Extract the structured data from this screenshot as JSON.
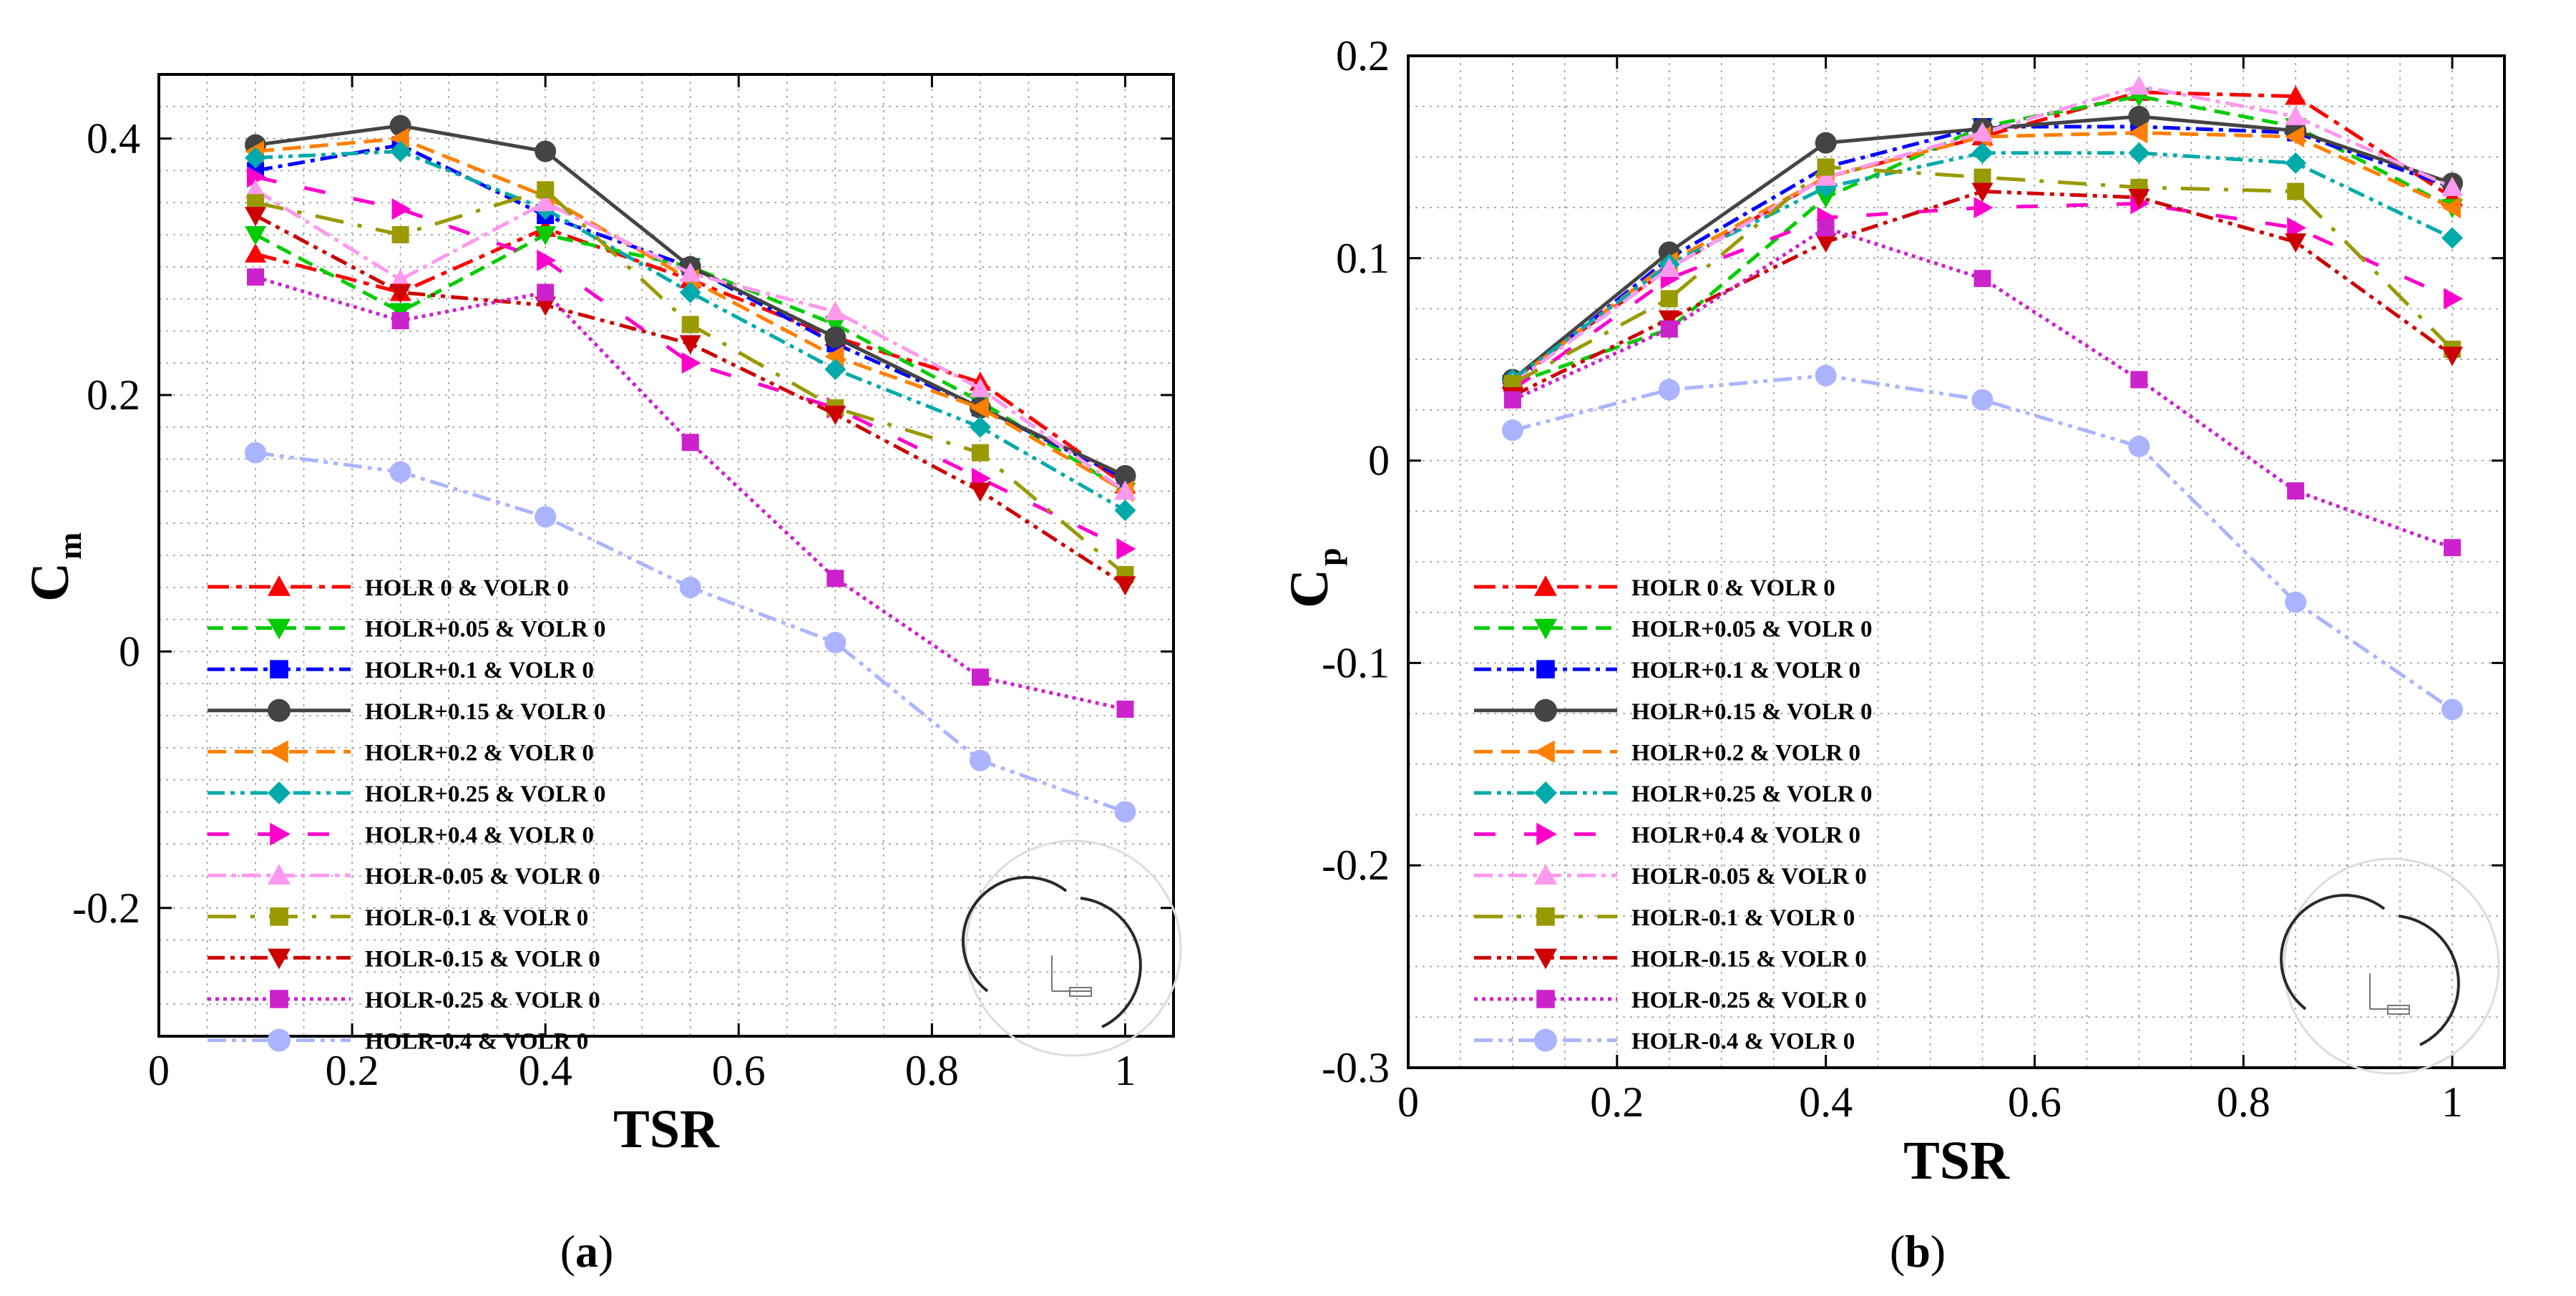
{
  "chart_data": [
    {
      "type": "line",
      "panel": "a",
      "caption_letter": "a",
      "title": "",
      "xlabel": "TSR",
      "ylabel_main": "C",
      "ylabel_sub": "m",
      "xlim": [
        0,
        1.05
      ],
      "ylim": [
        -0.3,
        0.45
      ],
      "xticks": [
        0,
        0.2,
        0.4,
        0.6,
        0.8,
        1
      ],
      "xtick_labels": [
        "0",
        "0.2",
        "0.4",
        "0.6",
        "0.8",
        "1"
      ],
      "yticks": [
        -0.2,
        0,
        0.2,
        0.4
      ],
      "ytick_labels": [
        "-0.2",
        "0",
        "0.2",
        "0.4"
      ],
      "grid": true,
      "legend_position": "lower-left",
      "x": [
        0.1,
        0.25,
        0.4,
        0.55,
        0.7,
        0.85,
        1.0
      ],
      "series": [
        {
          "name": "HOLR 0 & VOLR 0",
          "color": "#ff0000",
          "marker": "triangle-up",
          "dash": "30 10 8 10",
          "values": [
            0.31,
            0.28,
            0.33,
            0.29,
            0.245,
            0.21,
            0.13
          ]
        },
        {
          "name": "HOLR+0.05 & VOLR 0",
          "color": "#00cc00",
          "marker": "triangle-down",
          "dash": "22 12",
          "values": [
            0.325,
            0.265,
            0.325,
            0.3,
            0.255,
            0.195,
            0.125
          ]
        },
        {
          "name": "HOLR+0.1 & VOLR 0",
          "color": "#0000ff",
          "marker": "square",
          "dash": "24 8 6 8",
          "values": [
            0.375,
            0.395,
            0.34,
            0.3,
            0.24,
            0.19,
            0.135
          ]
        },
        {
          "name": "HOLR+0.15 & VOLR 0",
          "color": "#444444",
          "marker": "circle",
          "dash": "",
          "values": [
            0.395,
            0.41,
            0.39,
            0.3,
            0.245,
            0.19,
            0.137
          ]
        },
        {
          "name": "HOLR+0.2 & VOLR 0",
          "color": "#ff8000",
          "marker": "triangle-left",
          "dash": "26 12",
          "values": [
            0.39,
            0.4,
            0.355,
            0.29,
            0.23,
            0.19,
            0.125
          ]
        },
        {
          "name": "HOLR+0.25 & VOLR 0",
          "color": "#00aaaa",
          "marker": "diamond",
          "dash": "24 8 6 8 6 8",
          "values": [
            0.385,
            0.39,
            0.345,
            0.28,
            0.22,
            0.175,
            0.11
          ]
        },
        {
          "name": "HOLR+0.4 & VOLR 0",
          "color": "#ff00cc",
          "marker": "triangle-right",
          "dash": "30 40",
          "values": [
            0.37,
            0.345,
            0.305,
            0.225,
            0.19,
            0.135,
            0.08
          ]
        },
        {
          "name": "HOLR-0.05 & VOLR 0",
          "color": "#ff99ee",
          "marker": "triangle-up",
          "dash": "26 8 6 8",
          "values": [
            0.36,
            0.29,
            0.35,
            0.295,
            0.265,
            0.205,
            0.125
          ]
        },
        {
          "name": "HOLR-0.1 & VOLR 0",
          "color": "#999900",
          "marker": "square",
          "dash": "40 20 6 20",
          "values": [
            0.35,
            0.325,
            0.36,
            0.255,
            0.19,
            0.155,
            0.06
          ]
        },
        {
          "name": "HOLR-0.15 & VOLR 0",
          "color": "#cc0000",
          "marker": "triangle-down",
          "dash": "24 8 6 8 6 8",
          "values": [
            0.34,
            0.28,
            0.27,
            0.24,
            0.185,
            0.125,
            0.052
          ]
        },
        {
          "name": "HOLR-0.25 & VOLR 0",
          "color": "#cc22cc",
          "marker": "square",
          "dash": "5 6",
          "values": [
            0.292,
            0.258,
            0.28,
            0.163,
            0.057,
            -0.02,
            -0.045
          ]
        },
        {
          "name": "HOLR-0.4 & VOLR 0",
          "color": "#aab4ff",
          "marker": "circle",
          "dash": "26 8 6 8 6 8",
          "values": [
            0.155,
            0.14,
            0.105,
            0.05,
            0.007,
            -0.085,
            -0.125
          ]
        }
      ]
    },
    {
      "type": "line",
      "panel": "b",
      "caption_letter": "b",
      "title": "",
      "xlabel": "TSR",
      "ylabel_main": "C",
      "ylabel_sub": "p",
      "xlim": [
        0,
        1.05
      ],
      "ylim": [
        -0.3,
        0.2
      ],
      "xticks": [
        0,
        0.2,
        0.4,
        0.6,
        0.8,
        1
      ],
      "xtick_labels": [
        "0",
        "0.2",
        "0.4",
        "0.6",
        "0.8",
        "1"
      ],
      "yticks": [
        -0.3,
        -0.2,
        -0.1,
        0,
        0.1,
        0.2
      ],
      "ytick_labels": [
        "-0.3",
        "-0.2",
        "-0.1",
        "0",
        "0.1",
        "0.2"
      ],
      "grid": true,
      "legend_position": "lower-left",
      "x": [
        0.1,
        0.25,
        0.4,
        0.55,
        0.7,
        0.85,
        1.0
      ],
      "series": [
        {
          "name": "HOLR 0 & VOLR 0",
          "color": "#ff0000",
          "marker": "triangle-up",
          "dash": "30 10 8 10",
          "values": [
            0.04,
            0.095,
            0.14,
            0.16,
            0.182,
            0.18,
            0.13
          ]
        },
        {
          "name": "HOLR+0.05 & VOLR 0",
          "color": "#00cc00",
          "marker": "triangle-down",
          "dash": "22 12",
          "values": [
            0.038,
            0.065,
            0.13,
            0.165,
            0.18,
            0.165,
            0.125
          ]
        },
        {
          "name": "HOLR+0.1 & VOLR 0",
          "color": "#0000ff",
          "marker": "square",
          "dash": "24 8 6 8",
          "values": [
            0.038,
            0.1,
            0.145,
            0.165,
            0.165,
            0.162,
            0.135
          ]
        },
        {
          "name": "HOLR+0.15 & VOLR 0",
          "color": "#444444",
          "marker": "circle",
          "dash": "",
          "values": [
            0.04,
            0.103,
            0.157,
            0.164,
            0.17,
            0.163,
            0.137
          ]
        },
        {
          "name": "HOLR+0.2 & VOLR 0",
          "color": "#ff8000",
          "marker": "triangle-left",
          "dash": "26 12",
          "values": [
            0.039,
            0.098,
            0.14,
            0.16,
            0.162,
            0.16,
            0.125
          ]
        },
        {
          "name": "HOLR+0.25 & VOLR 0",
          "color": "#00aaaa",
          "marker": "diamond",
          "dash": "24 8 6 8 6 8",
          "values": [
            0.04,
            0.097,
            0.135,
            0.152,
            0.152,
            0.147,
            0.11
          ]
        },
        {
          "name": "HOLR+0.4 & VOLR 0",
          "color": "#ff00cc",
          "marker": "triangle-right",
          "dash": "30 40",
          "values": [
            0.035,
            0.09,
            0.12,
            0.125,
            0.127,
            0.115,
            0.08
          ]
        },
        {
          "name": "HOLR-0.05 & VOLR 0",
          "color": "#ff99ee",
          "marker": "triangle-up",
          "dash": "26 8 6 8",
          "values": [
            0.038,
            0.095,
            0.14,
            0.162,
            0.185,
            0.17,
            0.135
          ]
        },
        {
          "name": "HOLR-0.1 & VOLR 0",
          "color": "#999900",
          "marker": "square",
          "dash": "40 20 6 20",
          "values": [
            0.038,
            0.08,
            0.145,
            0.14,
            0.135,
            0.133,
            0.055
          ]
        },
        {
          "name": "HOLR-0.15 & VOLR 0",
          "color": "#cc0000",
          "marker": "triangle-down",
          "dash": "24 8 6 8 6 8",
          "values": [
            0.032,
            0.07,
            0.108,
            0.133,
            0.13,
            0.108,
            0.052
          ]
        },
        {
          "name": "HOLR-0.25 & VOLR 0",
          "color": "#cc22cc",
          "marker": "square",
          "dash": "5 6",
          "values": [
            0.03,
            0.065,
            0.115,
            0.09,
            0.04,
            -0.015,
            -0.043
          ]
        },
        {
          "name": "HOLR-0.4 & VOLR 0",
          "color": "#aab4ff",
          "marker": "circle",
          "dash": "26 8 6 8 6 8",
          "values": [
            0.015,
            0.035,
            0.042,
            0.03,
            0.007,
            -0.07,
            -0.123
          ]
        }
      ]
    }
  ]
}
